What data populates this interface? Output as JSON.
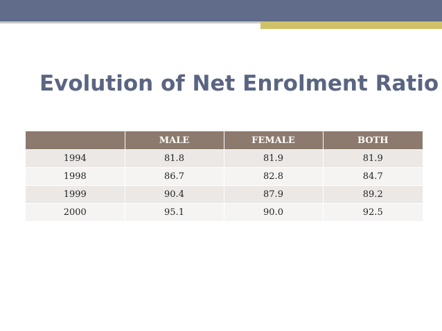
{
  "slide": {
    "title": "Evolution of Net Enrolment Ratio"
  },
  "table": {
    "headers": [
      "",
      "MALE",
      "FEMALE",
      "BOTH"
    ],
    "rows": [
      [
        "1994",
        "81.8",
        "81.9",
        "81.9"
      ],
      [
        "1998",
        "86.7",
        "82.8",
        "84.7"
      ],
      [
        "1999",
        "90.4",
        "87.9",
        "89.2"
      ],
      [
        "2000",
        "95.1",
        "90.0",
        "92.5"
      ]
    ]
  },
  "colors": {
    "top_bar": "#606c8a",
    "accent": "#cfc16a",
    "header_fill": "#8c7a6e",
    "title_color": "#5a6582"
  }
}
